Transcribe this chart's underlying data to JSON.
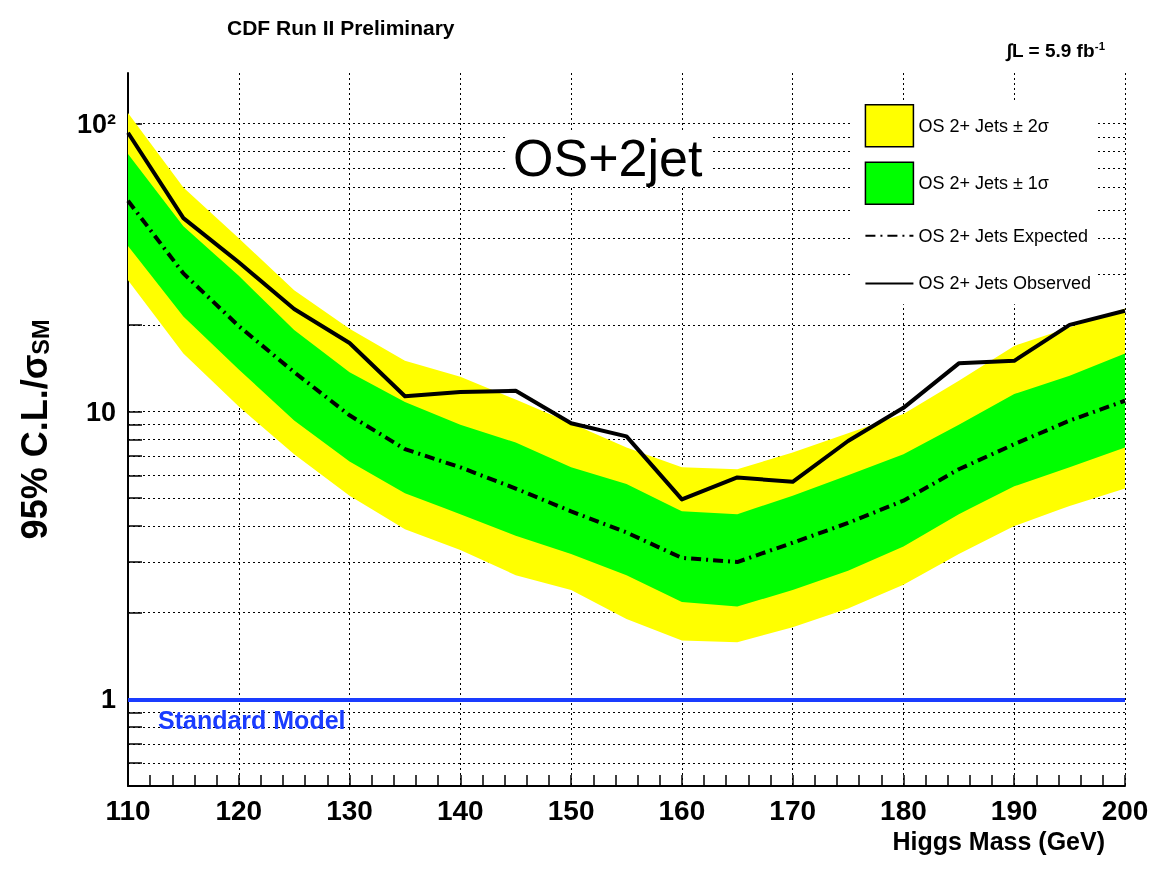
{
  "chart_data": {
    "type": "line",
    "title": "CDF Run II Preliminary",
    "xlabel": "Higgs Mass (GeV)",
    "ylabel": "95% C.L./σ$_{SM}$",
    "annotations": [
      "∫L = 5.9 fb$^{-1}$",
      "OS+2jet"
    ],
    "x": [
      110,
      115,
      120,
      125,
      130,
      135,
      140,
      145,
      150,
      155,
      160,
      165,
      170,
      175,
      180,
      185,
      190,
      195,
      200
    ],
    "series": [
      {
        "name": "OS 2+ Jets ± 2σ",
        "type": "area",
        "color": "#ffff00",
        "values": [
          null,
          null,
          null,
          null,
          null,
          null,
          null,
          null,
          null,
          null,
          null,
          null,
          null,
          null,
          null,
          null,
          null,
          null,
          null
        ],
        "lower": [
          28.6,
          15.9,
          10.4,
          7.1,
          5.1,
          3.9,
          3.3,
          2.7,
          2.4,
          1.9,
          1.6,
          1.58,
          1.78,
          2.07,
          2.5,
          3.2,
          4.0,
          4.7,
          5.4
        ],
        "upper": [
          109,
          60,
          40,
          26.4,
          19.4,
          15,
          13.2,
          11,
          9.1,
          7.5,
          6.4,
          6.3,
          7.2,
          8.4,
          9.8,
          12.8,
          16.9,
          19.6,
          22.8
        ]
      },
      {
        "name": "OS 2+ Jets ± 1σ",
        "type": "area",
        "color": "#00ff00",
        "values": [
          null,
          null,
          null,
          null,
          null,
          null,
          null,
          null,
          null,
          null,
          null,
          null,
          null,
          null,
          null,
          null,
          null,
          null,
          null
        ],
        "lower": [
          37.6,
          21.4,
          14,
          9.3,
          6.7,
          5.2,
          4.4,
          3.7,
          3.2,
          2.7,
          2.18,
          2.1,
          2.4,
          2.8,
          3.4,
          4.4,
          5.5,
          6.4,
          7.5
        ],
        "upper": [
          78.5,
          44,
          29.6,
          19.2,
          13.7,
          10.8,
          9.0,
          7.8,
          6.4,
          5.6,
          4.5,
          4.4,
          5.1,
          6.0,
          7.1,
          9.0,
          11.5,
          13.3,
          15.9
        ]
      },
      {
        "name": "OS 2+ Jets Expected",
        "color": "#000000",
        "line_style": "dashed",
        "values": [
          54,
          30.2,
          19.8,
          13.7,
          9.7,
          7.4,
          6.4,
          5.4,
          4.5,
          3.8,
          3.1,
          3.0,
          3.5,
          4.1,
          4.9,
          6.3,
          7.7,
          9.3,
          10.9
        ]
      },
      {
        "name": "OS 2+ Jets Observed",
        "color": "#000000",
        "line_style": "solid",
        "values": [
          93,
          47,
          33,
          22.7,
          17.3,
          11.3,
          11.7,
          11.8,
          9.1,
          8.2,
          4.95,
          5.9,
          5.7,
          7.9,
          10.3,
          14.7,
          15.0,
          20,
          22.4
        ]
      }
    ],
    "ref_lines": [
      {
        "axis": "y",
        "value": 1,
        "label": "Standard Model",
        "color": "#1a3cff"
      }
    ],
    "log": "y",
    "xlim": [
      110,
      200
    ],
    "xticks": [
      110,
      {
        "value": 112,
        "label": null
      },
      {
        "value": 114,
        "label": null
      },
      {
        "value": 116,
        "label": null
      },
      {
        "value": 118,
        "label": null
      },
      120,
      {
        "value": 122,
        "label": null
      },
      {
        "value": 124,
        "label": null
      },
      {
        "value": 126,
        "label": null
      },
      {
        "value": 128,
        "label": null
      },
      130,
      {
        "value": 132,
        "label": null
      },
      {
        "value": 134,
        "label": null
      },
      {
        "value": 136,
        "label": null
      },
      {
        "value": 138,
        "label": null
      },
      140,
      {
        "value": 142,
        "label": null
      },
      {
        "value": 144,
        "label": null
      },
      {
        "value": 146,
        "label": null
      },
      {
        "value": 148,
        "label": null
      },
      150,
      {
        "value": 152,
        "label": null
      },
      {
        "value": 154,
        "label": null
      },
      {
        "value": 156,
        "label": null
      },
      {
        "value": 158,
        "label": null
      },
      160,
      {
        "value": 162,
        "label": null
      },
      {
        "value": 164,
        "label": null
      },
      {
        "value": 166,
        "label": null
      },
      {
        "value": 168,
        "label": null
      },
      170,
      {
        "value": 172,
        "label": null
      },
      {
        "value": 174,
        "label": null
      },
      {
        "value": 176,
        "label": null
      },
      {
        "value": 178,
        "label": null
      },
      180,
      {
        "value": 182,
        "label": null
      },
      {
        "value": 184,
        "label": null
      },
      {
        "value": 186,
        "label": null
      },
      {
        "value": 188,
        "label": null
      },
      190,
      {
        "value": 192,
        "label": null
      },
      {
        "value": 194,
        "label": null
      },
      {
        "value": 196,
        "label": null
      },
      {
        "value": 198,
        "label": null
      },
      200
    ],
    "ylim": [
      0.5,
      150
    ],
    "yticks": [
      {
        "value": 0.6,
        "label": null
      },
      {
        "value": 0.7,
        "label": null
      },
      {
        "value": 0.8,
        "label": null
      },
      {
        "value": 0.9,
        "label": null
      },
      1,
      {
        "value": 2,
        "label": null
      },
      {
        "value": 3,
        "label": null
      },
      {
        "value": 4,
        "label": null
      },
      {
        "value": 5,
        "label": null
      },
      {
        "value": 6,
        "label": null
      },
      {
        "value": 7,
        "label": null
      },
      {
        "value": 8,
        "label": null
      },
      {
        "value": 9,
        "label": null
      },
      10,
      {
        "value": 20,
        "label": null
      },
      {
        "value": 30,
        "label": null
      },
      {
        "value": 40,
        "label": null
      },
      {
        "value": 50,
        "label": null
      },
      {
        "value": 60,
        "label": null
      },
      {
        "value": 70,
        "label": null
      },
      {
        "value": 80,
        "label": null
      },
      {
        "value": 90,
        "label": null
      },
      {
        "value": 100,
        "label": "10²"
      }
    ],
    "grid": true,
    "legend": "top right",
    "marker": "none"
  }
}
